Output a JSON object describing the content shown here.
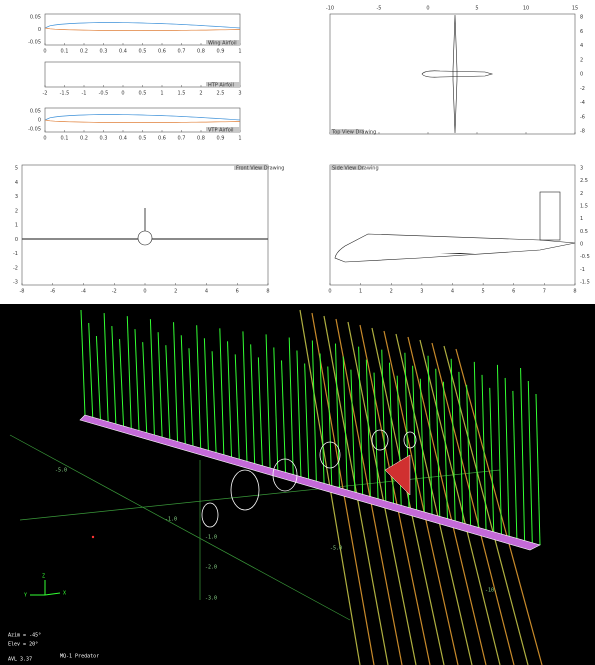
{
  "panels": {
    "wing_airfoil": {
      "label": "Wing Airfoil",
      "yticks": [
        "0.05",
        "0",
        "-0.05"
      ],
      "xticks": [
        "0",
        "0.1",
        "0.2",
        "0.3",
        "0.4",
        "0.5",
        "0.6",
        "0.7",
        "0.8",
        "0.9",
        "1"
      ]
    },
    "htp_airfoil": {
      "label": "HTP Airfoil",
      "xticks": [
        "-2",
        "-1.5",
        "-1",
        "-0.5",
        "0",
        "0.5",
        "1",
        "1.5",
        "2",
        "2.5",
        "3"
      ]
    },
    "vtp_airfoil": {
      "label": "VTP Airfoil",
      "yticks": [
        "0.05",
        "0",
        "-0.05"
      ],
      "xticks": [
        "0",
        "0.1",
        "0.2",
        "0.3",
        "0.4",
        "0.5",
        "0.6",
        "0.7",
        "0.8",
        "0.9",
        "1"
      ]
    },
    "top_view": {
      "label": "Top View Drawing",
      "xticks": [
        "-10",
        "-5",
        "0",
        "5",
        "10",
        "15"
      ],
      "yticks": [
        "8",
        "6",
        "4",
        "2",
        "0",
        "-2",
        "-4",
        "-6",
        "-8"
      ]
    },
    "front_view": {
      "label": "Front View Drawing",
      "yticks": [
        "5",
        "4",
        "3",
        "2",
        "1",
        "0",
        "-1",
        "-2",
        "-3"
      ],
      "xticks": [
        "-8",
        "-6",
        "-4",
        "-2",
        "0",
        "2",
        "4",
        "6",
        "8"
      ]
    },
    "side_view": {
      "label": "Side View Drawing",
      "yticks": [
        "3",
        "2.5",
        "2",
        "1.5",
        "1",
        "0.5",
        "0",
        "-0.5",
        "-1",
        "-1.5"
      ],
      "xticks": [
        "0",
        "1",
        "2",
        "3",
        "4",
        "5",
        "6",
        "7",
        "8"
      ]
    }
  },
  "render": {
    "axis_labels": [
      "Z",
      "Y",
      "X"
    ],
    "scene_labels": [
      "-5.0",
      "-1.0",
      "-1.0",
      "-2.0",
      "-3.0",
      "-5.0",
      "-10."
    ],
    "azimuth": "Azim = -45°",
    "elevation": "Elev = 20°",
    "version": "AVL 3.37",
    "title": "MQ-1 Predator"
  }
}
